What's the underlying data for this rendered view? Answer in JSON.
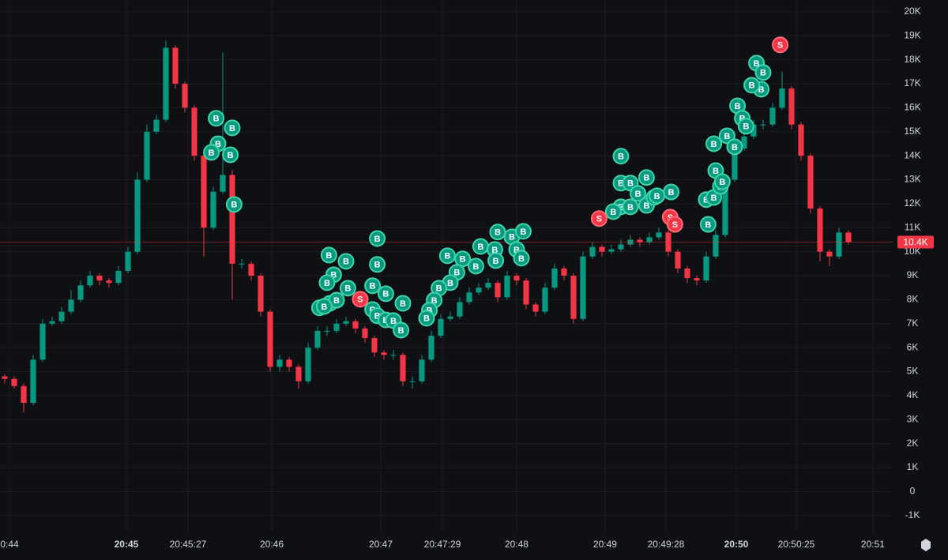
{
  "chart_data": {
    "type": "candlestick",
    "xlim": [
      -0.5,
      93.67
    ],
    "xticks": [
      {
        "value": 0.5,
        "label": "0:44"
      },
      {
        "value": 12.83,
        "label": "20:45",
        "bold": true
      },
      {
        "value": 19.33,
        "label": "20:45:27"
      },
      {
        "value": 28.17,
        "label": "20:46"
      },
      {
        "value": 39.67,
        "label": "20:47"
      },
      {
        "value": 46.17,
        "label": "20:47:29"
      },
      {
        "value": 54,
        "label": "20:48"
      },
      {
        "value": 63.33,
        "label": "20:49"
      },
      {
        "value": 69.75,
        "label": "20:49:28"
      },
      {
        "value": 77.17,
        "label": "20:50",
        "bold": true
      },
      {
        "value": 83.5,
        "label": "20:50:25"
      },
      {
        "value": 91.58,
        "label": "20:51"
      }
    ],
    "ylim": [
      -1730,
      20490
    ],
    "yticks": [
      {
        "value": 20000,
        "label": "20K"
      },
      {
        "value": 19000,
        "label": "19K"
      },
      {
        "value": 18000,
        "label": "18K"
      },
      {
        "value": 17000,
        "label": "17K"
      },
      {
        "value": 16000,
        "label": "16K"
      },
      {
        "value": 15000,
        "label": "15K"
      },
      {
        "value": 14000,
        "label": "14K"
      },
      {
        "value": 13000,
        "label": "13K"
      },
      {
        "value": 12000,
        "label": "12K"
      },
      {
        "value": 11000,
        "label": "11K"
      },
      {
        "value": 10000,
        "label": "10K"
      },
      {
        "value": 9000,
        "label": "9K"
      },
      {
        "value": 8000,
        "label": "8K"
      },
      {
        "value": 7000,
        "label": "7K"
      },
      {
        "value": 6000,
        "label": "6K"
      },
      {
        "value": 5000,
        "label": "5K"
      },
      {
        "value": 4000,
        "label": "4K"
      },
      {
        "value": 3000,
        "label": "3K"
      },
      {
        "value": 2000,
        "label": "2K"
      },
      {
        "value": 1000,
        "label": "1K"
      },
      0,
      {
        "value": -1000,
        "label": "-1K"
      }
    ],
    "grid": true,
    "up_color": "#089981",
    "down_color": "#f23645",
    "candles": {
      "open": [
        4800,
        4700,
        4400,
        3700,
        5500,
        7000,
        7100,
        7500,
        8000,
        8600,
        9000,
        8800,
        8700,
        9200,
        10000,
        13000,
        15000,
        15500,
        18500,
        17000,
        16000,
        14000,
        11000,
        12500,
        13200,
        9500,
        9500,
        9000,
        7500,
        5200,
        5500,
        5200,
        4600,
        6000,
        6700,
        6700,
        7000,
        7100,
        6800,
        6400,
        5800,
        5700,
        5700,
        4600,
        4600,
        5500,
        6500,
        7200,
        7300,
        7900,
        8300,
        8500,
        8700,
        8100,
        9000,
        8800,
        7800,
        7500,
        8500,
        9300,
        9000,
        7200,
        9800,
        10200,
        10000,
        10100,
        10300,
        10500,
        10400,
        10600,
        10800,
        10000,
        9300,
        8900,
        8800,
        9800,
        10700,
        13000,
        14300,
        14800,
        15300,
        15300,
        16000,
        16800,
        15300,
        14000,
        11800,
        10000,
        9800,
        10800
      ],
      "high": [
        4900,
        4800,
        4500,
        5700,
        7200,
        7300,
        7700,
        8400,
        8800,
        9200,
        9100,
        8900,
        9400,
        10200,
        13300,
        15300,
        15700,
        18800,
        18600,
        17100,
        16100,
        14100,
        12700,
        18300,
        13400,
        9700,
        9600,
        9100,
        7600,
        5700,
        5600,
        5300,
        6200,
        6900,
        6900,
        7200,
        7300,
        7200,
        6900,
        6500,
        5900,
        5900,
        5800,
        4800,
        5700,
        6700,
        7400,
        7500,
        8100,
        8500,
        8700,
        8900,
        8800,
        9200,
        9100,
        8900,
        7900,
        8700,
        9500,
        9400,
        9100,
        10000,
        10400,
        10300,
        10300,
        10500,
        10700,
        10600,
        10800,
        11000,
        10900,
        10100,
        9400,
        9000,
        10000,
        10900,
        13200,
        14500,
        15000,
        15500,
        15500,
        16200,
        17500,
        16900,
        15400,
        14100,
        11900,
        10100,
        11000,
        10900
      ],
      "low": [
        4500,
        4300,
        3300,
        3600,
        5400,
        6900,
        7000,
        7400,
        7900,
        8500,
        8600,
        8500,
        8600,
        9100,
        9900,
        12900,
        14900,
        15400,
        16800,
        15800,
        13800,
        9800,
        10900,
        12400,
        8000,
        9300,
        8800,
        7300,
        5000,
        5000,
        5000,
        4300,
        4500,
        5900,
        6500,
        6600,
        6900,
        6600,
        6200,
        5600,
        5500,
        5500,
        4400,
        4300,
        4500,
        5400,
        6400,
        7100,
        7200,
        7800,
        8200,
        8400,
        7900,
        8000,
        8600,
        7600,
        7300,
        7400,
        8400,
        8800,
        7000,
        7100,
        9700,
        9800,
        9900,
        10000,
        10200,
        10200,
        10300,
        10500,
        9800,
        9100,
        8700,
        8600,
        8700,
        9700,
        10600,
        12900,
        14200,
        14700,
        15100,
        15200,
        15900,
        15100,
        13800,
        11600,
        9600,
        9400,
        9700,
        10300
      ],
      "close": [
        4700,
        4400,
        3700,
        5500,
        7000,
        7100,
        7500,
        8000,
        8600,
        9000,
        8800,
        8700,
        9200,
        10000,
        13000,
        15000,
        15500,
        18500,
        17000,
        16000,
        14000,
        11000,
        12500,
        13200,
        9500,
        9500,
        9000,
        7500,
        5200,
        5500,
        5200,
        4600,
        6000,
        6700,
        6700,
        7000,
        7100,
        6800,
        6400,
        5800,
        5700,
        5700,
        4600,
        4600,
        5500,
        6500,
        7200,
        7300,
        7900,
        8300,
        8500,
        8700,
        8100,
        9000,
        8800,
        7800,
        7500,
        8500,
        9300,
        9000,
        7200,
        9800,
        10200,
        10000,
        10100,
        10300,
        10500,
        10400,
        10600,
        10800,
        10000,
        9300,
        8900,
        8800,
        9800,
        10700,
        13000,
        14300,
        14800,
        15300,
        15300,
        16000,
        16800,
        15300,
        14000,
        11800,
        10000,
        9800,
        10800,
        10400
      ]
    },
    "last_price": {
      "value": 10400,
      "label": "10.4K",
      "color": "#f23645"
    },
    "markers": [
      {
        "label": "B",
        "x": 22.3,
        "price": 15560
      },
      {
        "label": "B",
        "x": 24.0,
        "price": 15160
      },
      {
        "label": "B",
        "x": 22.5,
        "price": 14500
      },
      {
        "label": "B",
        "x": 21.8,
        "price": 14140
      },
      {
        "label": "B",
        "x": 23.8,
        "price": 14040
      },
      {
        "label": "B",
        "x": 24.2,
        "price": 11970
      },
      {
        "label": "B",
        "x": 34.2,
        "price": 9860
      },
      {
        "label": "B",
        "x": 36.0,
        "price": 9600
      },
      {
        "label": "B",
        "x": 34.7,
        "price": 9040
      },
      {
        "label": "B",
        "x": 34.0,
        "price": 8710
      },
      {
        "label": "B",
        "x": 36.2,
        "price": 8480
      },
      {
        "label": "B",
        "x": 33.2,
        "price": 7660
      },
      {
        "label": "B",
        "x": 34.3,
        "price": 7850
      },
      {
        "label": "B",
        "x": 35.0,
        "price": 7980
      },
      {
        "label": "B",
        "x": 33.7,
        "price": 7720
      },
      {
        "label": "B",
        "x": 39.3,
        "price": 10550
      },
      {
        "label": "B",
        "x": 39.3,
        "price": 9470
      },
      {
        "label": "B",
        "x": 38.8,
        "price": 8580
      },
      {
        "label": "B",
        "x": 40.2,
        "price": 8250
      },
      {
        "label": "B",
        "x": 42.0,
        "price": 7850
      },
      {
        "label": "B",
        "x": 38.8,
        "price": 7590
      },
      {
        "label": "B",
        "x": 39.3,
        "price": 7330
      },
      {
        "label": "B",
        "x": 40.2,
        "price": 7160
      },
      {
        "label": "B",
        "x": 41.0,
        "price": 7130
      },
      {
        "label": "B",
        "x": 41.8,
        "price": 6730
      },
      {
        "label": "S",
        "x": 37.5,
        "price": 8020
      },
      {
        "label": "B",
        "x": 46.7,
        "price": 9830
      },
      {
        "label": "B",
        "x": 48.3,
        "price": 9700
      },
      {
        "label": "B",
        "x": 47.7,
        "price": 9140
      },
      {
        "label": "B",
        "x": 50.2,
        "price": 10220
      },
      {
        "label": "B",
        "x": 52.0,
        "price": 10820
      },
      {
        "label": "B",
        "x": 53.5,
        "price": 10620
      },
      {
        "label": "B",
        "x": 54.7,
        "price": 10850
      },
      {
        "label": "B",
        "x": 51.7,
        "price": 10090
      },
      {
        "label": "B",
        "x": 49.7,
        "price": 9400
      },
      {
        "label": "B",
        "x": 47.0,
        "price": 8710
      },
      {
        "label": "B",
        "x": 45.8,
        "price": 8480
      },
      {
        "label": "B",
        "x": 45.3,
        "price": 7980
      },
      {
        "label": "B",
        "x": 44.8,
        "price": 7560
      },
      {
        "label": "B",
        "x": 44.5,
        "price": 7230
      },
      {
        "label": "B",
        "x": 54.0,
        "price": 10090
      },
      {
        "label": "B",
        "x": 54.5,
        "price": 9730
      },
      {
        "label": "B",
        "x": 51.8,
        "price": 9630
      },
      {
        "label": "B",
        "x": 65.0,
        "price": 13980
      },
      {
        "label": "B",
        "x": 65.0,
        "price": 12860
      },
      {
        "label": "B",
        "x": 66.0,
        "price": 12860
      },
      {
        "label": "B",
        "x": 67.7,
        "price": 13090
      },
      {
        "label": "B",
        "x": 66.8,
        "price": 12430
      },
      {
        "label": "B",
        "x": 65.0,
        "price": 11870
      },
      {
        "label": "B",
        "x": 64.2,
        "price": 11670
      },
      {
        "label": "B",
        "x": 66.0,
        "price": 11870
      },
      {
        "label": "B",
        "x": 67.7,
        "price": 11930
      },
      {
        "label": "B",
        "x": 68.5,
        "price": 12260
      },
      {
        "label": "B",
        "x": 70.3,
        "price": 12490
      },
      {
        "label": "B",
        "x": 68.8,
        "price": 12330
      },
      {
        "label": "S",
        "x": 62.7,
        "price": 11380
      },
      {
        "label": "S",
        "x": 70.2,
        "price": 11440
      },
      {
        "label": "S",
        "x": 70.7,
        "price": 11140
      },
      {
        "label": "B",
        "x": 74.2,
        "price": 11140
      },
      {
        "label": "B",
        "x": 74.0,
        "price": 12170
      },
      {
        "label": "B",
        "x": 74.8,
        "price": 12260
      },
      {
        "label": "B",
        "x": 75.0,
        "price": 13380
      },
      {
        "label": "B",
        "x": 75.5,
        "price": 12720
      },
      {
        "label": "B",
        "x": 75.7,
        "price": 12920
      },
      {
        "label": "B",
        "x": 77.3,
        "price": 16080
      },
      {
        "label": "B",
        "x": 77.8,
        "price": 15560
      },
      {
        "label": "B",
        "x": 78.2,
        "price": 15230
      },
      {
        "label": "B",
        "x": 76.2,
        "price": 14830
      },
      {
        "label": "B",
        "x": 74.8,
        "price": 14500
      },
      {
        "label": "B",
        "x": 77.0,
        "price": 14370
      },
      {
        "label": "B",
        "x": 79.3,
        "price": 17860
      },
      {
        "label": "B",
        "x": 80.0,
        "price": 17470
      },
      {
        "label": "B",
        "x": 79.8,
        "price": 16770
      },
      {
        "label": "B",
        "x": 78.8,
        "price": 16940
      },
      {
        "label": "S",
        "x": 81.8,
        "price": 18620
      }
    ]
  }
}
